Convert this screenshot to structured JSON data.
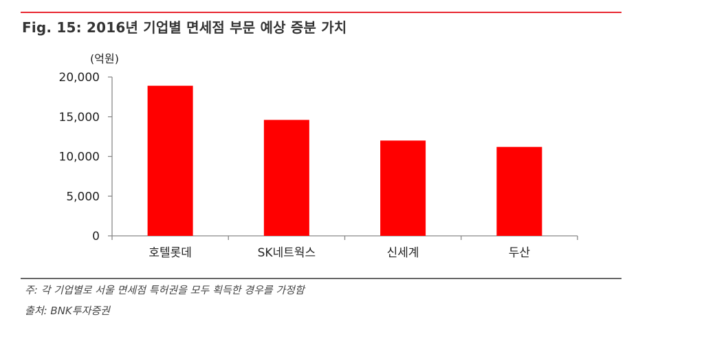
{
  "figure": {
    "title": "Fig. 15: 2016년 기업별 면세점 부문 예상 증분 가치",
    "note": "주: 각 기업별로 서울 면세점 특허권을 모두 획득한 경우를 가정함",
    "source": "출처: BNK투자증권"
  },
  "colors": {
    "bar": "#ff0000",
    "top_rule": "#e8252e",
    "axis": "#888888",
    "text": "#222222"
  },
  "chart_data": {
    "type": "bar",
    "unit_label": "(억원)",
    "categories": [
      "호텔롯데",
      "SK네트웍스",
      "신세계",
      "두산"
    ],
    "values": [
      18900,
      14600,
      12000,
      11200
    ],
    "ylim": [
      0,
      20000
    ],
    "yticks": [
      0,
      5000,
      10000,
      15000,
      20000
    ],
    "ytick_labels": [
      "0",
      "5,000",
      "10,000",
      "15,000",
      "20,000"
    ],
    "grid": false,
    "legend": "none"
  }
}
